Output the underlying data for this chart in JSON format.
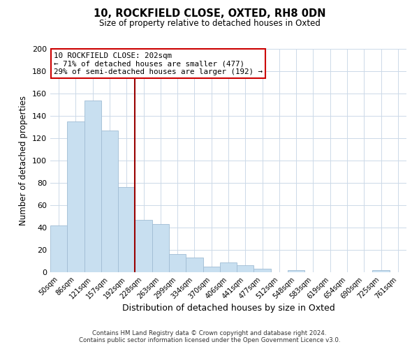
{
  "title": "10, ROCKFIELD CLOSE, OXTED, RH8 0DN",
  "subtitle": "Size of property relative to detached houses in Oxted",
  "xlabel": "Distribution of detached houses by size in Oxted",
  "ylabel": "Number of detached properties",
  "bar_labels": [
    "50sqm",
    "86sqm",
    "121sqm",
    "157sqm",
    "192sqm",
    "228sqm",
    "263sqm",
    "299sqm",
    "334sqm",
    "370sqm",
    "406sqm",
    "441sqm",
    "477sqm",
    "512sqm",
    "548sqm",
    "583sqm",
    "619sqm",
    "654sqm",
    "690sqm",
    "725sqm",
    "761sqm"
  ],
  "bar_values": [
    42,
    135,
    154,
    127,
    76,
    47,
    43,
    16,
    13,
    5,
    9,
    6,
    3,
    0,
    2,
    0,
    0,
    0,
    0,
    2,
    0
  ],
  "bar_color": "#c8dff0",
  "bar_edge_color": "#a0bcd4",
  "vline_x": 4.5,
  "vline_color": "#990000",
  "annotation_title": "10 ROCKFIELD CLOSE: 202sqm",
  "annotation_line1": "← 71% of detached houses are smaller (477)",
  "annotation_line2": "29% of semi-detached houses are larger (192) →",
  "annotation_box_color": "#ffffff",
  "annotation_box_edge": "#cc0000",
  "ylim": [
    0,
    200
  ],
  "yticks": [
    0,
    20,
    40,
    60,
    80,
    100,
    120,
    140,
    160,
    180,
    200
  ],
  "footer1": "Contains HM Land Registry data © Crown copyright and database right 2024.",
  "footer2": "Contains public sector information licensed under the Open Government Licence v3.0.",
  "background_color": "#ffffff",
  "grid_color": "#ccd9e8"
}
